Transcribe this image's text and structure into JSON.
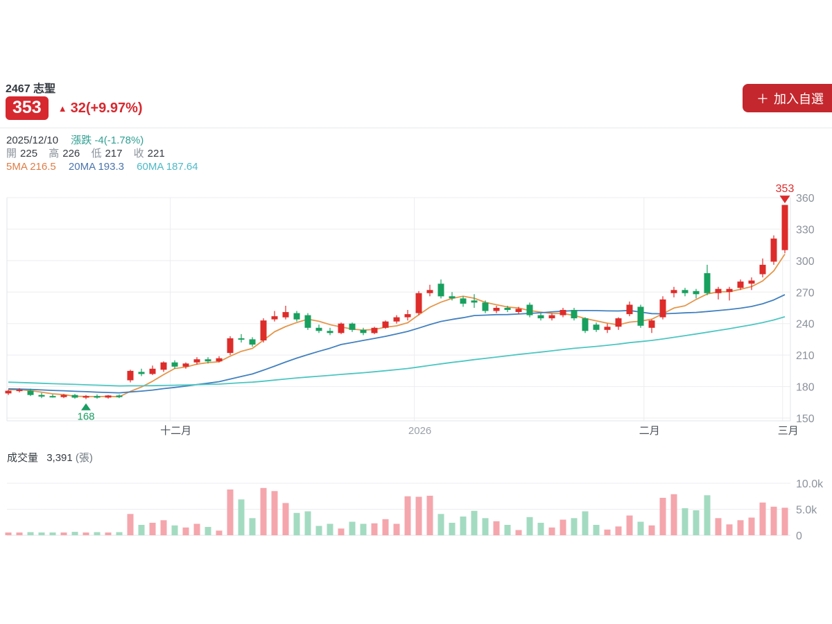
{
  "header": {
    "stock_id_name": "2467 志聖",
    "price": "353",
    "change_arrow": "▲",
    "change_text": "32(+9.97%)",
    "add_button_plus": "＋",
    "add_button_label": "加入自選"
  },
  "info": {
    "date": "2025/12/10",
    "change_label": "漲跌",
    "change_value": "-4(-1.78%)",
    "ohlc": [
      {
        "label": "開",
        "value": "225"
      },
      {
        "label": "高",
        "value": "226"
      },
      {
        "label": "低",
        "value": "217"
      },
      {
        "label": "收",
        "value": "221"
      }
    ],
    "ma": [
      {
        "label": "5MA",
        "value": "216.5"
      },
      {
        "label": "20MA",
        "value": "193.3"
      },
      {
        "label": "60MA",
        "value": "187.64"
      }
    ]
  },
  "volume_header": {
    "label": "成交量",
    "value": "3,391",
    "unit": "(張)"
  },
  "colors": {
    "up": "#dd2c2a",
    "down": "#18a05f",
    "vol_up": "#f4a6ac",
    "vol_down": "#a3dbc1",
    "ma5": "#e5964a",
    "ma20": "#4180bf",
    "ma60": "#4cc6c2",
    "grid": "#ededf0",
    "axis": "#e2e5e9",
    "tick_text": "#8b929b",
    "month_text": "#4a5158",
    "year_text": "#9aa1a9",
    "badge_bg": "#d7282f",
    "change_red": "#d7282f",
    "button_bg": "#c4272d",
    "teal_text": "#2fa093",
    "ma5_text": "#dd7d47",
    "ma20_text": "#4a74ad",
    "ma60_text": "#4db9c6",
    "low_marker": "#1a9e63",
    "high_marker": "#dc2b2b"
  },
  "chart_data": {
    "type": "candlestick+volume",
    "title": "2467 志聖 日K線",
    "price_axis": {
      "ticks": [
        150,
        180,
        210,
        240,
        270,
        300,
        330,
        360
      ],
      "range": [
        150,
        365
      ]
    },
    "volume_axis": {
      "ticks": [
        {
          "v": 0,
          "label": "0"
        },
        {
          "v": 5000,
          "label": "5.0k"
        },
        {
          "v": 10000,
          "label": "10.0k"
        }
      ]
    },
    "x_labels": [
      {
        "label": "十二月",
        "index": 14.6,
        "muted": false
      },
      {
        "label": "2026",
        "index": 36.6,
        "muted": true
      },
      {
        "label": "二月",
        "index": 57.3,
        "muted": false
      },
      {
        "label": "三月",
        "index": 69.8,
        "muted": false
      }
    ],
    "ma_periods": [
      5,
      20,
      60
    ],
    "ma_history": [
      194,
      193.5,
      193,
      193,
      192.5,
      192,
      192,
      191.5,
      191,
      191,
      190.5,
      190,
      190,
      189.5,
      189,
      189,
      188.5,
      188,
      188,
      187.5,
      187,
      187,
      186.5,
      186,
      186,
      185.5,
      185,
      185,
      184.5,
      184,
      184,
      183.5,
      183,
      183,
      182.5,
      182,
      182,
      181.5,
      181,
      181,
      180.5,
      180,
      180,
      179.5,
      179,
      179,
      178.5,
      178,
      178,
      177.5,
      177,
      177,
      176.5,
      176,
      176,
      176.5,
      177,
      177.5,
      178
    ],
    "candles": [
      [
        173.5,
        177,
        172,
        176
      ],
      [
        176,
        178.5,
        174.5,
        177
      ],
      [
        176,
        178,
        171,
        172
      ],
      [
        172,
        174,
        169,
        170.5
      ],
      [
        171,
        172.5,
        169.5,
        170
      ],
      [
        170,
        173,
        169,
        172
      ],
      [
        172,
        173,
        168.5,
        169.5
      ],
      [
        169.5,
        172,
        168,
        171
      ],
      [
        171,
        172.5,
        168.5,
        169.5
      ],
      [
        169.5,
        172,
        168.5,
        171.5
      ],
      [
        171.5,
        172.5,
        169,
        170
      ],
      [
        186,
        196,
        184,
        195
      ],
      [
        194,
        197,
        190,
        192
      ],
      [
        192,
        200,
        191,
        197
      ],
      [
        196,
        204,
        194,
        203
      ],
      [
        203,
        205,
        197,
        199
      ],
      [
        199,
        203,
        197,
        202
      ],
      [
        203,
        208,
        201,
        206
      ],
      [
        206,
        208,
        202,
        204
      ],
      [
        204,
        209,
        203,
        207
      ],
      [
        212,
        228,
        210,
        226
      ],
      [
        226,
        230,
        222,
        225
      ],
      [
        225,
        227,
        218,
        220
      ],
      [
        224,
        245,
        222,
        243
      ],
      [
        244,
        252,
        242,
        247
      ],
      [
        246,
        257,
        244,
        251
      ],
      [
        250,
        252,
        242,
        244
      ],
      [
        248,
        250,
        234,
        236
      ],
      [
        236,
        239,
        231,
        233
      ],
      [
        233,
        236,
        229,
        231
      ],
      [
        231,
        241,
        230,
        240
      ],
      [
        240,
        241,
        232,
        234
      ],
      [
        234,
        236,
        229,
        231
      ],
      [
        231,
        237,
        230,
        236
      ],
      [
        236,
        243,
        235,
        242
      ],
      [
        242,
        248,
        240,
        246
      ],
      [
        246,
        253,
        243,
        249
      ],
      [
        250,
        271,
        248,
        269
      ],
      [
        269,
        277,
        266,
        272
      ],
      [
        278,
        282,
        264,
        266
      ],
      [
        266,
        270,
        262,
        264
      ],
      [
        264,
        266,
        256,
        259
      ],
      [
        262,
        268,
        255,
        260
      ],
      [
        260,
        262,
        250,
        252
      ],
      [
        252,
        257,
        250,
        255
      ],
      [
        255,
        257,
        251,
        253
      ],
      [
        251,
        256,
        249,
        254
      ],
      [
        258,
        260,
        246,
        248
      ],
      [
        248,
        250,
        243,
        245
      ],
      [
        245,
        250,
        243,
        248
      ],
      [
        248,
        255,
        246,
        253
      ],
      [
        253,
        255,
        243,
        245
      ],
      [
        245,
        246,
        231,
        233
      ],
      [
        239,
        241,
        232,
        234
      ],
      [
        234,
        240,
        231,
        237
      ],
      [
        237,
        246,
        234,
        245
      ],
      [
        249,
        261,
        247,
        258
      ],
      [
        256,
        258,
        236,
        238
      ],
      [
        236,
        244,
        231,
        243
      ],
      [
        246,
        266,
        244,
        263
      ],
      [
        269,
        275,
        265,
        272
      ],
      [
        272,
        274,
        266,
        269
      ],
      [
        271,
        273,
        264,
        268
      ],
      [
        288,
        296,
        267,
        269
      ],
      [
        269,
        275,
        263,
        273
      ],
      [
        270,
        275,
        262,
        273
      ],
      [
        274,
        282,
        272,
        280
      ],
      [
        278,
        284,
        272,
        281
      ],
      [
        287,
        302,
        284,
        296
      ],
      [
        299,
        324,
        296,
        321
      ],
      [
        310,
        353,
        307,
        353
      ]
    ],
    "volumes": [
      500,
      400,
      600,
      400,
      500,
      450,
      650,
      500,
      600,
      500,
      600,
      4100,
      2000,
      2400,
      2900,
      1900,
      1500,
      2200,
      1600,
      900,
      8800,
      6900,
      3300,
      9100,
      8500,
      6200,
      4300,
      4600,
      1800,
      2200,
      1300,
      2600,
      2200,
      2300,
      3100,
      2200,
      7500,
      7400,
      7600,
      4100,
      2400,
      3600,
      4700,
      3300,
      2700,
      2000,
      1000,
      3500,
      2400,
      1500,
      3000,
      3300,
      4600,
      2000,
      1100,
      1700,
      3800,
      2600,
      1900,
      7200,
      7900,
      5200,
      4800,
      7700,
      3300,
      2100,
      2900,
      3400,
      6300,
      5500,
      5300
    ],
    "annotations": {
      "low": {
        "index": 7,
        "label": "168"
      },
      "high": {
        "index": 70,
        "label": "353"
      }
    }
  }
}
